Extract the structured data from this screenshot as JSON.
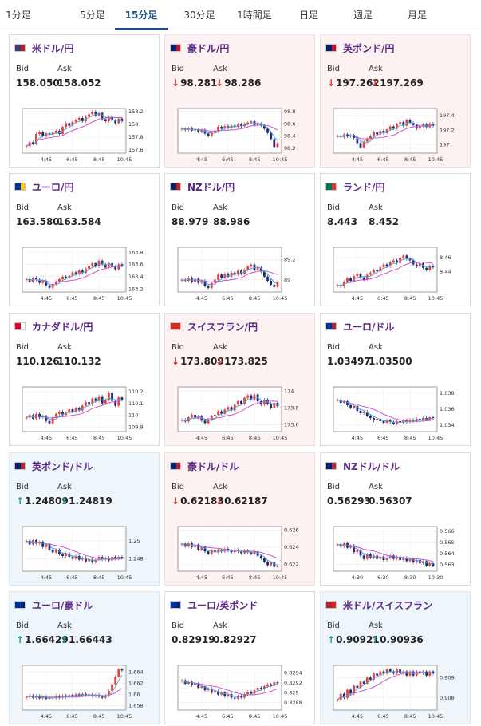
{
  "tabs": [
    {
      "label": "1分足"
    },
    {
      "label": "5分足"
    },
    {
      "label": "15分足",
      "active": true
    },
    {
      "label": "30分足"
    },
    {
      "label": "1時間足"
    },
    {
      "label": "日足"
    },
    {
      "label": "週足"
    },
    {
      "label": "月足"
    }
  ],
  "labels": {
    "bid": "Bid",
    "ask": "Ask"
  },
  "colors": {
    "up_candle": "#e8413b",
    "down_candle": "#1f2a7a",
    "ma_short": "#47a7d6",
    "ma_long": "#cc55cc",
    "down_bg": "#fdf2f2",
    "up_bg": "#eef6fb",
    "down_arrow": "#d0312d",
    "up_arrow": "#1a9a8a"
  },
  "cards": [
    {
      "pair": "米ドル/円",
      "flag": [
        "#3c3b6e",
        "#b22234"
      ],
      "state": "none",
      "bid": "158.050",
      "ask": "158.052",
      "chart_data": {
        "type": "candlestick",
        "x_ticks": [
          "4:45",
          "6:45",
          "8:45",
          "10:45"
        ],
        "y_ticks": [
          "158.2",
          "158",
          "157.8",
          "157.6"
        ],
        "ylim": [
          157.55,
          158.25
        ],
        "close": [
          157.66,
          157.72,
          157.7,
          157.85,
          157.88,
          157.82,
          157.86,
          157.84,
          157.87,
          157.9,
          157.85,
          157.96,
          158.02,
          157.98,
          158.04,
          158.07,
          158.1,
          158.05,
          158.12,
          158.16,
          158.2,
          158.14,
          158.18,
          158.08,
          158.05,
          158.12,
          158.06,
          158.02,
          158.09,
          158.05
        ]
      }
    },
    {
      "pair": "豪ドル/円",
      "flag": [
        "#012169",
        "#c8102e"
      ],
      "state": "down",
      "bid": "98.281",
      "ask": "98.286",
      "bid_dir": "down",
      "ask_dir": "down",
      "chart_data": {
        "type": "candlestick",
        "x_ticks": [
          "4:45",
          "6:45",
          "8:45",
          "10:45"
        ],
        "y_ticks": [
          "98.8",
          "98.6",
          "98.4",
          "98.2"
        ],
        "ylim": [
          98.12,
          98.85
        ],
        "close": [
          98.52,
          98.5,
          98.53,
          98.49,
          98.51,
          98.47,
          98.5,
          98.44,
          98.4,
          98.46,
          98.48,
          98.55,
          98.52,
          98.56,
          98.53,
          98.57,
          98.55,
          98.59,
          98.56,
          98.6,
          98.62,
          98.64,
          98.58,
          98.6,
          98.57,
          98.52,
          98.45,
          98.35,
          98.22,
          98.28
        ]
      }
    },
    {
      "pair": "英ポンド/円",
      "flag": [
        "#012169",
        "#c8102e"
      ],
      "state": "down",
      "bid": "197.262",
      "ask": "197.269",
      "bid_dir": "down",
      "ask_dir": "down",
      "chart_data": {
        "type": "candlestick",
        "x_ticks": [
          "4:45",
          "6:45",
          "8:45",
          "10:45"
        ],
        "y_ticks": [
          "197.4",
          "197.2",
          "197"
        ],
        "ylim": [
          196.88,
          197.5
        ],
        "close": [
          197.12,
          197.1,
          197.14,
          197.11,
          197.13,
          197.09,
          197.02,
          196.96,
          197.04,
          197.08,
          197.12,
          197.17,
          197.14,
          197.19,
          197.16,
          197.21,
          197.25,
          197.22,
          197.28,
          197.31,
          197.26,
          197.34,
          197.3,
          197.27,
          197.22,
          197.25,
          197.28,
          197.24,
          197.29,
          197.26
        ]
      }
    },
    {
      "pair": "ユーロ/円",
      "flag": [
        "#003399",
        "#ffcc00"
      ],
      "state": "none",
      "bid": "163.580",
      "ask": "163.584",
      "chart_data": {
        "type": "candlestick",
        "x_ticks": [
          "4:45",
          "6:45",
          "8:45",
          "10:45"
        ],
        "y_ticks": [
          "163.8",
          "163.6",
          "163.4",
          "163.2"
        ],
        "ylim": [
          163.15,
          163.88
        ],
        "close": [
          163.36,
          163.32,
          163.38,
          163.35,
          163.3,
          163.33,
          163.26,
          163.22,
          163.28,
          163.32,
          163.36,
          163.4,
          163.38,
          163.42,
          163.47,
          163.44,
          163.5,
          163.46,
          163.53,
          163.58,
          163.62,
          163.57,
          163.66,
          163.6,
          163.55,
          163.62,
          163.56,
          163.52,
          163.6,
          163.58
        ]
      }
    },
    {
      "pair": "NZドル/円",
      "flag": [
        "#012169",
        "#cc142b"
      ],
      "state": "none",
      "bid": "88.979",
      "ask": "88.986",
      "chart_data": {
        "type": "candlestick",
        "x_ticks": [
          "4:45",
          "6:45",
          "8:45",
          "10:45"
        ],
        "y_ticks": [
          "89.2",
          "89"
        ],
        "ylim": [
          88.88,
          89.32
        ],
        "close": [
          89.0,
          88.99,
          89.02,
          88.98,
          89.01,
          88.97,
          88.99,
          88.94,
          88.92,
          88.97,
          89.0,
          89.05,
          89.02,
          89.06,
          89.03,
          89.07,
          89.05,
          89.09,
          89.06,
          89.1,
          89.13,
          89.15,
          89.1,
          89.12,
          89.08,
          89.03,
          88.99,
          88.95,
          88.93,
          88.98
        ]
      }
    },
    {
      "pair": "ランド/円",
      "flag": [
        "#007a4d",
        "#de3831"
      ],
      "state": "none",
      "bid": "8.443",
      "ask": "8.452",
      "chart_data": {
        "type": "candlestick",
        "x_ticks": [
          "4:45",
          "6:45",
          "8:45",
          "10:45"
        ],
        "y_ticks": [
          "8.46",
          "8.44"
        ],
        "ylim": [
          8.41,
          8.475
        ],
        "close": [
          8.42,
          8.418,
          8.425,
          8.43,
          8.426,
          8.433,
          8.436,
          8.431,
          8.428,
          8.435,
          8.438,
          8.442,
          8.44,
          8.446,
          8.45,
          8.447,
          8.453,
          8.456,
          8.452,
          8.46,
          8.463,
          8.458,
          8.456,
          8.45,
          8.447,
          8.452,
          8.445,
          8.442,
          8.448,
          8.446
        ]
      }
    },
    {
      "pair": "カナダドル/円",
      "flag": [
        "#d80621",
        "#ffffff"
      ],
      "state": "none",
      "bid": "110.126",
      "ask": "110.132",
      "chart_data": {
        "type": "candlestick",
        "x_ticks": [
          "4:45",
          "6:45",
          "8:45",
          "10:45"
        ],
        "y_ticks": [
          "110.2",
          "110.1",
          "110",
          "109.9"
        ],
        "ylim": [
          109.86,
          110.24
        ],
        "close": [
          109.98,
          110.0,
          109.97,
          110.01,
          109.98,
          109.99,
          109.95,
          109.93,
          109.98,
          110.01,
          110.03,
          110.0,
          110.02,
          110.05,
          110.03,
          110.06,
          110.04,
          110.08,
          110.11,
          110.09,
          110.14,
          110.12,
          110.16,
          110.1,
          110.13,
          110.19,
          110.12,
          110.08,
          110.15,
          110.13
        ]
      }
    },
    {
      "pair": "スイスフラン/円",
      "flag": [
        "#d52b1e",
        "#d52b1e"
      ],
      "state": "down",
      "bid": "173.809",
      "ask": "173.825",
      "bid_dir": "down",
      "ask_dir": "down",
      "chart_data": {
        "type": "candlestick",
        "x_ticks": [
          "4:45",
          "6:45",
          "8:45",
          "10:45"
        ],
        "y_ticks": [
          "174",
          "173.8",
          "173.6"
        ],
        "ylim": [
          173.52,
          174.05
        ],
        "close": [
          173.66,
          173.64,
          173.69,
          173.72,
          173.68,
          173.7,
          173.65,
          173.62,
          173.66,
          173.7,
          173.72,
          173.76,
          173.73,
          173.78,
          173.81,
          173.77,
          173.84,
          173.88,
          173.85,
          173.92,
          173.95,
          173.9,
          173.96,
          173.88,
          173.84,
          173.9,
          173.85,
          173.8,
          173.86,
          173.82
        ]
      }
    },
    {
      "pair": "ユーロ/ドル",
      "flag": [
        "#003399",
        "#b22234"
      ],
      "state": "none",
      "bid": "1.03497",
      "ask": "1.03500",
      "chart_data": {
        "type": "candlestick",
        "x_ticks": [
          "4:45",
          "6:45",
          "8:45",
          "10:45"
        ],
        "y_ticks": [
          "1.038",
          "1.036",
          "1.034"
        ],
        "ylim": [
          1.0332,
          1.0388
        ],
        "close": [
          1.0372,
          1.0368,
          1.037,
          1.0365,
          1.0362,
          1.0364,
          1.0358,
          1.0355,
          1.0357,
          1.0352,
          1.0349,
          1.0346,
          1.0348,
          1.0345,
          1.0343,
          1.0346,
          1.0344,
          1.0342,
          1.0345,
          1.0343,
          1.0346,
          1.0344,
          1.0347,
          1.0345,
          1.0348,
          1.0346,
          1.0349,
          1.0347,
          1.035,
          1.0349
        ]
      }
    },
    {
      "pair": "英ポンド/ドル",
      "flag": [
        "#012169",
        "#b22234"
      ],
      "state": "up",
      "bid": "1.24809",
      "ask": "1.24819",
      "bid_dir": "up",
      "ask_dir": "up",
      "chart_data": {
        "type": "candlestick",
        "x_ticks": [
          "4:45",
          "6:45",
          "8:45",
          "10:45"
        ],
        "y_ticks": [
          "1.25",
          "1.248"
        ],
        "ylim": [
          1.2466,
          1.2516
        ],
        "close": [
          1.25,
          1.2496,
          1.2501,
          1.2497,
          1.2499,
          1.2493,
          1.2496,
          1.249,
          1.2487,
          1.249,
          1.2485,
          1.2483,
          1.2486,
          1.2482,
          1.248,
          1.2483,
          1.2479,
          1.2481,
          1.2477,
          1.2479,
          1.2476,
          1.2479,
          1.2482,
          1.2479,
          1.2481,
          1.2478,
          1.2482,
          1.248,
          1.2482,
          1.2481
        ]
      }
    },
    {
      "pair": "豪ドル/ドル",
      "flag": [
        "#012169",
        "#b22234"
      ],
      "state": "down",
      "bid": "0.62183",
      "ask": "0.62187",
      "bid_dir": "down",
      "ask_dir": "down",
      "chart_data": {
        "type": "candlestick",
        "x_ticks": [
          "4:45",
          "6:45",
          "8:45",
          "10:45"
        ],
        "y_ticks": [
          "0.626",
          "0.624",
          "0.622"
        ],
        "ylim": [
          0.6212,
          0.6264
        ],
        "close": [
          0.6244,
          0.6241,
          0.6245,
          0.624,
          0.6243,
          0.6237,
          0.624,
          0.6235,
          0.6232,
          0.6236,
          0.6234,
          0.6237,
          0.6235,
          0.6238,
          0.6236,
          0.6234,
          0.6237,
          0.6235,
          0.6233,
          0.6236,
          0.6234,
          0.6232,
          0.6235,
          0.623,
          0.6227,
          0.6223,
          0.6219,
          0.6222,
          0.6217,
          0.6218
        ]
      }
    },
    {
      "pair": "NZドル/ドル",
      "flag": [
        "#012169",
        "#b22234"
      ],
      "state": "none",
      "bid": "0.56293",
      "ask": "0.56307",
      "chart_data": {
        "type": "candlestick",
        "x_ticks": [
          "4:30",
          "6:30",
          "8:30",
          "10:30"
        ],
        "y_ticks": [
          "0.566",
          "0.565",
          "0.564",
          "0.563"
        ],
        "ylim": [
          0.5624,
          0.5664
        ],
        "close": [
          0.5648,
          0.5646,
          0.5649,
          0.5645,
          0.5647,
          0.5641,
          0.5643,
          0.5638,
          0.5635,
          0.5639,
          0.5636,
          0.5638,
          0.5635,
          0.5637,
          0.5634,
          0.5636,
          0.5638,
          0.5635,
          0.5637,
          0.5634,
          0.5636,
          0.5633,
          0.5635,
          0.5632,
          0.5634,
          0.5631,
          0.5633,
          0.5629,
          0.5631,
          0.5629
        ]
      }
    },
    {
      "pair": "ユーロ/豪ドル",
      "flag": [
        "#003399",
        "#012169"
      ],
      "state": "up",
      "bid": "1.66429",
      "ask": "1.66443",
      "bid_dir": "up",
      "ask_dir": "up",
      "chart_data": {
        "type": "candlestick",
        "x_ticks": [
          "4:45",
          "6:45",
          "8:45",
          "10:45"
        ],
        "y_ticks": [
          "1.664",
          "1.662",
          "1.66",
          "1.658"
        ],
        "ylim": [
          1.6572,
          1.6652
        ],
        "close": [
          1.6595,
          1.6598,
          1.6594,
          1.6597,
          1.6593,
          1.6596,
          1.6592,
          1.6595,
          1.6593,
          1.6597,
          1.6594,
          1.6598,
          1.6595,
          1.6599,
          1.6596,
          1.66,
          1.6597,
          1.6601,
          1.6598,
          1.66,
          1.6597,
          1.6599,
          1.6596,
          1.6594,
          1.6598,
          1.6606,
          1.6618,
          1.6632,
          1.6645,
          1.6643
        ]
      }
    },
    {
      "pair": "ユーロ/英ポンド",
      "flag": [
        "#003399",
        "#012169"
      ],
      "state": "none",
      "bid": "0.82919",
      "ask": "0.82927",
      "chart_data": {
        "type": "candlestick",
        "x_ticks": [
          "4:45",
          "6:45",
          "8:45",
          "10:45"
        ],
        "y_ticks": [
          "0.8294",
          "0.8292",
          "0.829",
          "0.8288"
        ],
        "ylim": [
          0.82865,
          0.82955
        ],
        "close": [
          0.82925,
          0.82918,
          0.82922,
          0.82915,
          0.82918,
          0.8291,
          0.82913,
          0.82905,
          0.82908,
          0.829,
          0.82903,
          0.82896,
          0.829,
          0.82893,
          0.82897,
          0.8289,
          0.82888,
          0.82893,
          0.8289,
          0.82897,
          0.82902,
          0.82898,
          0.82905,
          0.8291,
          0.82907,
          0.82913,
          0.82917,
          0.82914,
          0.82921,
          0.82919
        ]
      }
    },
    {
      "pair": "米ドル/スイスフラン",
      "flag": [
        "#b22234",
        "#d52b1e"
      ],
      "state": "up",
      "bid": "0.90921",
      "ask": "0.90936",
      "bid_dir": "up",
      "ask_dir": "up",
      "chart_data": {
        "type": "candlestick",
        "x_ticks": [
          "4:45",
          "6:45",
          "8:45",
          "10:45"
        ],
        "y_ticks": [
          "0.909",
          "0.908"
        ],
        "ylim": [
          0.9074,
          0.9096
        ],
        "close": [
          0.9079,
          0.9082,
          0.908,
          0.9084,
          0.9082,
          0.9086,
          0.9085,
          0.9088,
          0.9087,
          0.909,
          0.9089,
          0.9092,
          0.9091,
          0.9093,
          0.9092,
          0.9094,
          0.9093,
          0.9092,
          0.9094,
          0.9092,
          0.9093,
          0.9091,
          0.9093,
          0.9091,
          0.9093,
          0.9092,
          0.9093,
          0.9091,
          0.9093,
          0.9092
        ]
      }
    }
  ]
}
